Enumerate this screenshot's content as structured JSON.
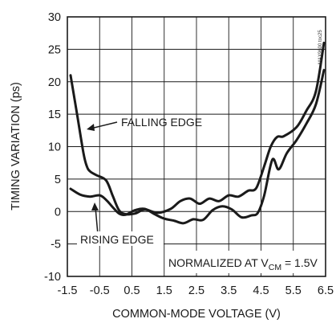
{
  "chart_data": {
    "type": "line",
    "title": "",
    "xlabel": "COMMON-MODE VOLTAGE (V)",
    "ylabel": "TIMING VARIATION (ps)",
    "xlim": [
      -1.5,
      6.5
    ],
    "ylim": [
      -10,
      30
    ],
    "grid": true,
    "x_ticks": [
      "-1.5",
      "-0.5",
      "0.5",
      "1.5",
      "2.5",
      "3.5",
      "4.5",
      "5.5",
      "6.5"
    ],
    "y_ticks": [
      "-10",
      "-5",
      "0",
      "5",
      "10",
      "15",
      "20",
      "25",
      "30"
    ],
    "series": [
      {
        "name": "FALLING EDGE",
        "x": [
          -1.4,
          -1.2,
          -1.0,
          -0.9,
          -0.8,
          -0.6,
          -0.3,
          -0.1,
          0.1,
          0.3,
          0.6,
          0.9,
          1.3,
          1.7,
          2.0,
          2.3,
          2.6,
          2.9,
          3.2,
          3.5,
          3.8,
          4.1,
          4.35,
          4.6,
          4.8,
          5.0,
          5.2,
          5.6,
          5.9,
          6.2,
          6.45
        ],
        "y": [
          21,
          15,
          9,
          7,
          6.2,
          5.6,
          4.8,
          2.5,
          0.2,
          -0.4,
          -0.3,
          0.3,
          -0.2,
          0.4,
          1.6,
          2.0,
          1.2,
          2.0,
          1.6,
          2.5,
          2.3,
          3.2,
          3.6,
          7.0,
          10.0,
          11.5,
          11.6,
          13.0,
          15.5,
          18.5,
          26
        ]
      },
      {
        "name": "RISING EDGE",
        "x": [
          -1.4,
          -1.1,
          -0.8,
          -0.5,
          -0.3,
          -0.1,
          0.1,
          0.3,
          0.6,
          0.9,
          1.2,
          1.5,
          1.8,
          2.1,
          2.4,
          2.7,
          3.0,
          3.3,
          3.6,
          3.9,
          4.2,
          4.4,
          4.6,
          4.85,
          5.05,
          5.3,
          5.6,
          5.9,
          6.2,
          6.45
        ],
        "y": [
          3.5,
          2.6,
          2.3,
          2.5,
          1.8,
          0.7,
          -0.3,
          -0.5,
          0.2,
          0.4,
          -0.4,
          -1.1,
          -1.4,
          -1.8,
          -1.2,
          -1.3,
          0.2,
          0.8,
          0.3,
          -0.9,
          -0.6,
          -0.2,
          2.5,
          8.0,
          6.5,
          9.0,
          11.0,
          13.5,
          16.5,
          21.8
        ]
      }
    ],
    "annotations": {
      "normalized": "NORMALIZED AT V",
      "normalized_sub": "CM",
      "normalized_tail": " = 1.5V",
      "watermark": "MAX9600 toc25"
    }
  }
}
